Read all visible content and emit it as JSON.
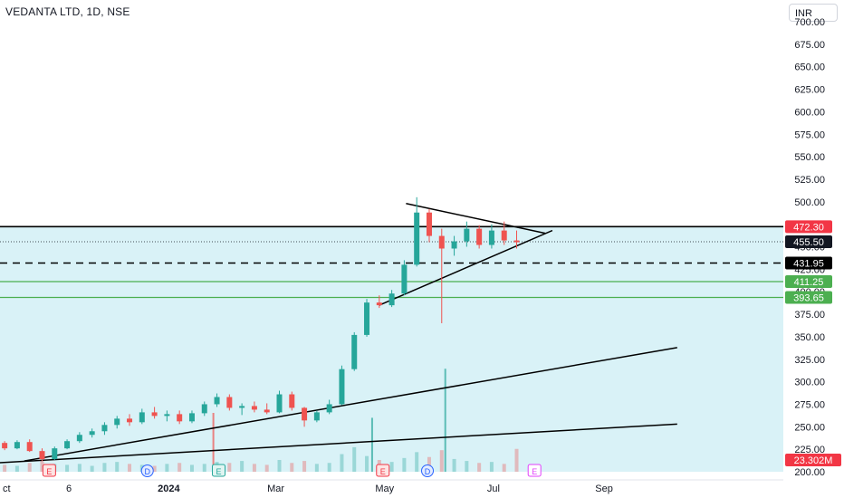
{
  "header": {
    "title": "VEDANTA LTD, 1D, NSE",
    "currency": "INR"
  },
  "colors": {
    "up": "#26a69a",
    "down": "#ef5350",
    "zone_fill": "#d9f2f7",
    "trendline": "#000000",
    "support_line": "#4caf50",
    "resistance_label": "#f23645",
    "current_label": "#131722",
    "volume_label": "#f23645",
    "earnings": "#f23645",
    "dividend": "#2962ff",
    "event_e_purple": "#e040fb"
  },
  "chart_data": {
    "type": "candlestick",
    "title": "VEDANTA LTD, 1D, NSE",
    "ylim": [
      200,
      700
    ],
    "y_ticks": [
      200,
      225,
      250,
      275,
      300,
      325,
      350,
      375,
      400,
      425,
      450,
      475,
      500,
      525,
      550,
      575,
      600,
      625,
      650,
      675,
      700
    ],
    "x_ticks": [
      "ct",
      "6",
      "2024",
      "Mar",
      "May",
      "Jul",
      "Sep"
    ],
    "x_tick_dates": [
      "2023-10-01",
      "2023-11-06",
      "2024-01-01",
      "2024-03-01",
      "2024-05-01",
      "2024-07-01",
      "2024-09-01"
    ],
    "grid": false,
    "price_labels": [
      {
        "label": "472.30",
        "value": 472.3,
        "kind": "resistance"
      },
      {
        "label": "455.50",
        "value": 455.5,
        "kind": "current"
      },
      {
        "label": "431.95",
        "value": 431.95,
        "kind": "dashed"
      },
      {
        "label": "411.25",
        "value": 411.25,
        "kind": "support"
      },
      {
        "label": "393.65",
        "value": 393.65,
        "kind": "support"
      }
    ],
    "volume_label": "23.302M",
    "horizontal_levels": [
      {
        "value": 472.3,
        "style": "solid",
        "color": "#000000"
      },
      {
        "value": 431.95,
        "style": "dashed",
        "color": "#000000"
      },
      {
        "value": 411.25,
        "style": "solid",
        "color": "#4caf50"
      },
      {
        "value": 393.65,
        "style": "solid",
        "color": "#4caf50"
      }
    ],
    "trendlines": [
      {
        "from": [
          "2023-09-28",
          210
        ],
        "to": [
          "2024-10-12",
          253
        ]
      },
      {
        "from": [
          "2023-10-12",
          212
        ],
        "to": [
          "2024-10-12",
          338
        ]
      },
      {
        "from": [
          "2024-04-28",
          385
        ],
        "to": [
          "2024-08-03",
          468
        ]
      },
      {
        "from": [
          "2024-05-13",
          498
        ],
        "to": [
          "2024-07-30",
          465
        ]
      }
    ],
    "events": [
      {
        "label": "E",
        "date": "2023-10-26",
        "kind": "earnings"
      },
      {
        "label": "D",
        "date": "2023-12-20",
        "kind": "dividend"
      },
      {
        "label": "E",
        "date": "2024-01-29",
        "kind": "earnings_green"
      },
      {
        "label": "E",
        "date": "2024-04-30",
        "kind": "earnings"
      },
      {
        "label": "D",
        "date": "2024-05-25",
        "kind": "dividend"
      },
      {
        "label": "E",
        "date": "2024-07-24",
        "kind": "earnings_future"
      }
    ],
    "series": [
      {
        "name": "VEDANTA LTD",
        "values": [
          [
            "2023-09-25",
            233,
            236,
            229,
            232
          ],
          [
            "2023-10-01",
            232,
            234,
            224,
            226
          ],
          [
            "2023-10-08",
            226,
            235,
            225,
            233
          ],
          [
            "2023-10-15",
            233,
            236,
            222,
            223
          ],
          [
            "2023-10-22",
            223,
            226,
            212,
            214
          ],
          [
            "2023-10-29",
            214,
            228,
            213,
            226
          ],
          [
            "2023-11-05",
            226,
            236,
            225,
            234
          ],
          [
            "2023-11-12",
            234,
            244,
            232,
            241
          ],
          [
            "2023-11-19",
            241,
            248,
            238,
            245
          ],
          [
            "2023-11-26",
            245,
            255,
            241,
            252
          ],
          [
            "2023-12-03",
            252,
            262,
            248,
            259
          ],
          [
            "2023-12-10",
            259,
            264,
            251,
            255
          ],
          [
            "2023-12-17",
            255,
            270,
            253,
            266
          ],
          [
            "2023-12-24",
            266,
            272,
            259,
            262
          ],
          [
            "2023-12-31",
            262,
            268,
            256,
            264
          ],
          [
            "2024-01-07",
            264,
            268,
            253,
            256
          ],
          [
            "2024-01-14",
            256,
            268,
            254,
            265
          ],
          [
            "2024-01-21",
            265,
            278,
            262,
            275
          ],
          [
            "2024-01-28",
            275,
            287,
            272,
            283
          ],
          [
            "2024-02-04",
            283,
            286,
            268,
            271
          ],
          [
            "2024-02-11",
            271,
            276,
            263,
            273
          ],
          [
            "2024-02-18",
            273,
            278,
            266,
            269
          ],
          [
            "2024-02-25",
            269,
            276,
            264,
            266
          ],
          [
            "2024-03-03",
            266,
            290,
            265,
            286
          ],
          [
            "2024-03-10",
            286,
            289,
            268,
            271
          ],
          [
            "2024-03-17",
            271,
            272,
            250,
            257
          ],
          [
            "2024-03-24",
            257,
            268,
            255,
            266
          ],
          [
            "2024-03-31",
            266,
            280,
            264,
            275
          ],
          [
            "2024-04-07",
            275,
            318,
            274,
            314
          ],
          [
            "2024-04-14",
            314,
            355,
            312,
            352
          ],
          [
            "2024-04-21",
            352,
            392,
            350,
            388
          ],
          [
            "2024-04-28",
            388,
            396,
            382,
            385
          ],
          [
            "2024-05-05",
            385,
            402,
            383,
            398
          ],
          [
            "2024-05-12",
            398,
            435,
            396,
            430
          ],
          [
            "2024-05-19",
            430,
            505,
            428,
            488
          ],
          [
            "2024-05-26",
            488,
            492,
            455,
            462
          ],
          [
            "2024-06-02",
            462,
            470,
            365,
            448
          ],
          [
            "2024-06-09",
            448,
            462,
            440,
            456
          ],
          [
            "2024-06-16",
            456,
            478,
            450,
            470
          ],
          [
            "2024-06-23",
            470,
            474,
            448,
            452
          ],
          [
            "2024-06-30",
            452,
            475,
            448,
            468
          ],
          [
            "2024-07-07",
            468,
            478,
            452,
            457
          ],
          [
            "2024-07-14",
            457,
            468,
            448,
            455
          ]
        ]
      }
    ],
    "volume": [
      [
        "2023-09-25",
        8
      ],
      [
        "2023-10-01",
        7
      ],
      [
        "2023-10-08",
        6
      ],
      [
        "2023-10-15",
        9
      ],
      [
        "2023-10-22",
        11
      ],
      [
        "2023-10-29",
        8
      ],
      [
        "2023-11-05",
        7
      ],
      [
        "2023-11-12",
        8
      ],
      [
        "2023-11-19",
        6
      ],
      [
        "2023-11-26",
        9
      ],
      [
        "2023-12-03",
        10
      ],
      [
        "2023-12-10",
        8
      ],
      [
        "2023-12-17",
        7
      ],
      [
        "2023-12-24",
        6
      ],
      [
        "2023-12-31",
        8
      ],
      [
        "2024-01-07",
        9
      ],
      [
        "2024-01-14",
        7
      ],
      [
        "2024-01-21",
        8
      ],
      [
        "2024-01-28",
        10
      ],
      [
        "2024-02-04",
        9
      ],
      [
        "2024-02-11",
        11
      ],
      [
        "2024-02-18",
        8
      ],
      [
        "2024-02-25",
        7
      ],
      [
        "2024-03-03",
        12
      ],
      [
        "2024-03-10",
        9
      ],
      [
        "2024-03-17",
        11
      ],
      [
        "2024-03-24",
        8
      ],
      [
        "2024-03-31",
        9
      ],
      [
        "2024-04-07",
        18
      ],
      [
        "2024-04-14",
        25
      ],
      [
        "2024-04-21",
        16
      ],
      [
        "2024-04-28",
        12
      ],
      [
        "2024-05-05",
        10
      ],
      [
        "2024-05-12",
        14
      ],
      [
        "2024-05-19",
        20
      ],
      [
        "2024-05-26",
        15
      ],
      [
        "2024-06-02",
        22
      ],
      [
        "2024-06-09",
        13
      ],
      [
        "2024-06-16",
        11
      ],
      [
        "2024-06-23",
        9
      ],
      [
        "2024-06-30",
        10
      ],
      [
        "2024-07-07",
        8
      ],
      [
        "2024-07-14",
        23.302
      ]
    ],
    "volume_spikes": [
      {
        "date": "2024-01-26",
        "value": 60,
        "color": "#ef5350"
      },
      {
        "date": "2024-04-24",
        "value": 55,
        "color": "#26a69a"
      },
      {
        "date": "2024-06-04",
        "value": 105,
        "color": "#26a69a"
      }
    ]
  }
}
